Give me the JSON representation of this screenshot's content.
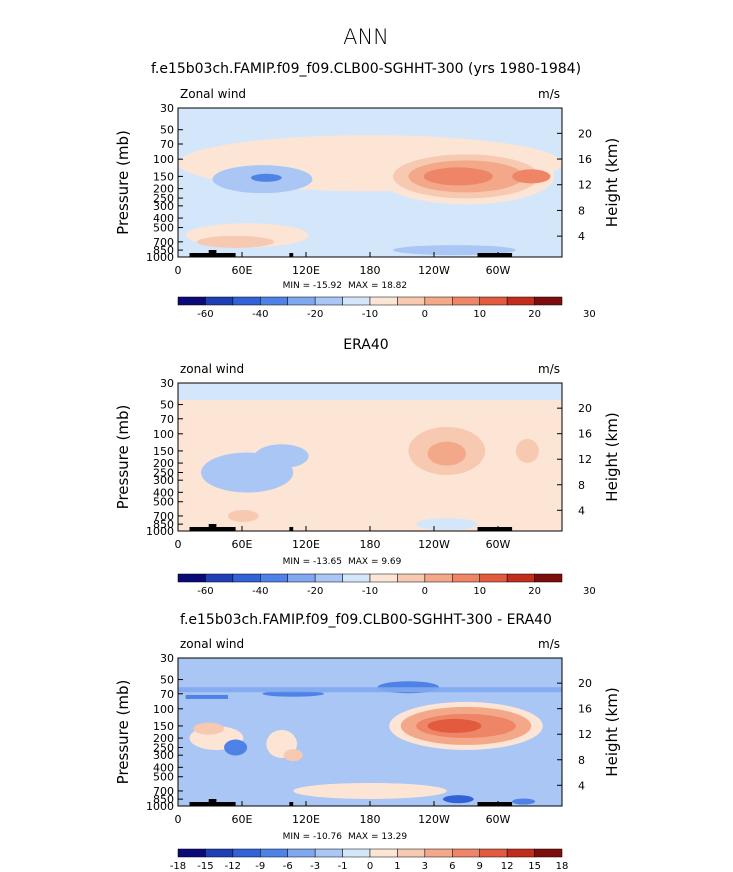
{
  "chart_data": {
    "title": "ANN",
    "panels": [
      {
        "type": "heatmap",
        "title": "f.e15b03ch.FAMIP.f09_f09.CLB00-SGHHT-300 (yrs 1980-1984)",
        "left_label": "Zonal wind",
        "right_label": "m/s",
        "ylabel": "Pressure (mb)",
        "ylabel_right": "Height (km)",
        "x_ticks": [
          "0",
          "60E",
          "120E",
          "180",
          "120W",
          "60W"
        ],
        "y_ticks": [
          "30",
          "50",
          "70",
          "100",
          "150",
          "200",
          "250",
          "300",
          "400",
          "500",
          "700",
          "850",
          "1000"
        ],
        "y_right_ticks": [
          "20",
          "16",
          "12",
          "8",
          "4"
        ],
        "min_label": "MIN = -15.92",
        "max_label": "MAX = 18.82",
        "colorbar_ticks": [
          "-60",
          "-40",
          "-20",
          "-10",
          "0",
          "10",
          "20",
          "30"
        ]
      },
      {
        "type": "heatmap",
        "title": "ERA40",
        "left_label": "zonal wind",
        "right_label": "m/s",
        "ylabel": "Pressure (mb)",
        "ylabel_right": "Height (km)",
        "x_ticks": [
          "0",
          "60E",
          "120E",
          "180",
          "120W",
          "60W"
        ],
        "y_ticks": [
          "30",
          "50",
          "70",
          "100",
          "150",
          "200",
          "250",
          "300",
          "400",
          "500",
          "700",
          "850",
          "1000"
        ],
        "y_right_ticks": [
          "20",
          "16",
          "12",
          "8",
          "4"
        ],
        "min_label": "MIN = -13.65",
        "max_label": "MAX = 9.69",
        "colorbar_ticks": [
          "-60",
          "-40",
          "-20",
          "-10",
          "0",
          "10",
          "20",
          "30"
        ]
      },
      {
        "type": "heatmap",
        "title": "f.e15b03ch.FAMIP.f09_f09.CLB00-SGHHT-300 - ERA40",
        "left_label": "zonal wind",
        "right_label": "m/s",
        "ylabel": "Pressure (mb)",
        "ylabel_right": "Height (km)",
        "x_ticks": [
          "0",
          "60E",
          "120E",
          "180",
          "120W",
          "60W"
        ],
        "y_ticks": [
          "30",
          "50",
          "70",
          "100",
          "150",
          "200",
          "250",
          "300",
          "400",
          "500",
          "700",
          "850",
          "1000"
        ],
        "y_right_ticks": [
          "20",
          "16",
          "12",
          "8",
          "4"
        ],
        "min_label": "MIN = -10.76",
        "max_label": "MAX = 13.29",
        "colorbar_ticks": [
          "-18",
          "-15",
          "-12",
          "-9",
          "-6",
          "-3",
          "-1",
          "0",
          "1",
          "3",
          "6",
          "9",
          "12",
          "15",
          "18"
        ]
      }
    ],
    "colorbar_colors": [
      "#0a0a78",
      "#1f3fb5",
      "#3261d8",
      "#4f82e6",
      "#7fa8ef",
      "#a9c6f4",
      "#d4e6fa",
      "#fde5d6",
      "#f7c9b0",
      "#f4a88a",
      "#ee8566",
      "#e35b3f",
      "#c22d1d",
      "#7e0d0d"
    ]
  }
}
